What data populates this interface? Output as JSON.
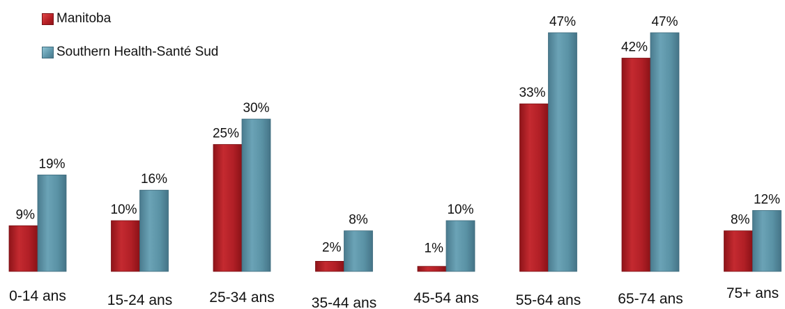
{
  "chart_data": {
    "type": "bar",
    "categories": [
      "0-14 ans",
      "15-24 ans",
      "25-34 ans",
      "35-44 ans",
      "45-54 ans",
      "55-64 ans",
      "65-74 ans",
      "75+ ans"
    ],
    "series": [
      {
        "name": "Manitoba",
        "values": [
          9,
          10,
          25,
          2,
          1,
          33,
          42,
          8
        ],
        "labels": [
          "9%",
          "10%",
          "25%",
          "2%",
          "1%",
          "33%",
          "42%",
          "8%"
        ],
        "color": "#b52027"
      },
      {
        "name": "Southern Health-Santé Sud",
        "values": [
          19,
          16,
          30,
          8,
          10,
          47,
          47,
          12
        ],
        "labels": [
          "19%",
          "16%",
          "30%",
          "8%",
          "10%",
          "47%",
          "47%",
          "12%"
        ],
        "color": "#5b93a6"
      }
    ],
    "ylim": [
      0,
      47
    ],
    "unit": "%",
    "grid": false,
    "legend_position": "top-left"
  }
}
